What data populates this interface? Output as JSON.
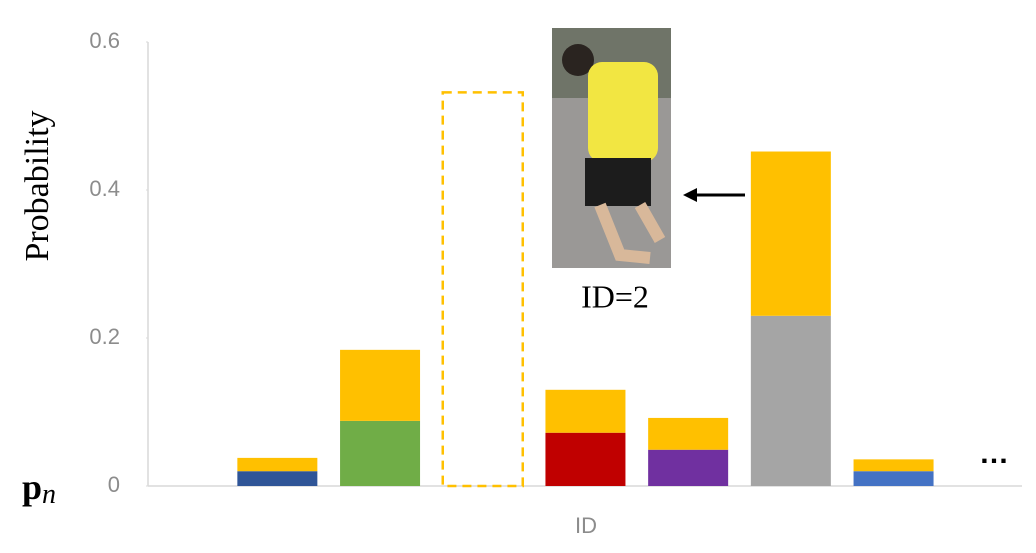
{
  "chart_data": {
    "type": "stacked-bar",
    "ylabel": "Probability",
    "xlabel": "ID",
    "categories": [
      null,
      null,
      null,
      null,
      null,
      null,
      null
    ],
    "series": [
      {
        "colors": [
          "#2f5597",
          "#70ad47",
          null,
          "#c00000",
          "#7030a0",
          "#a5a5a5",
          "#4472c4"
        ],
        "values": [
          0.02,
          0.088,
          null,
          0.072,
          0.049,
          0.23,
          0.02
        ]
      },
      {
        "color": "#ffc000",
        "values": [
          0.018,
          0.096,
          0.532,
          0.058,
          0.043,
          0.222,
          0.016
        ]
      }
    ],
    "dashed": [
      false,
      false,
      true,
      false,
      false,
      false,
      false
    ],
    "ylim": [
      0,
      0.6
    ],
    "yticks": [
      0,
      0.2,
      0.4,
      0.6
    ],
    "origin_label": {
      "base": "p",
      "subscript": "n"
    },
    "annotation": "ID=2",
    "continuation": "…"
  }
}
